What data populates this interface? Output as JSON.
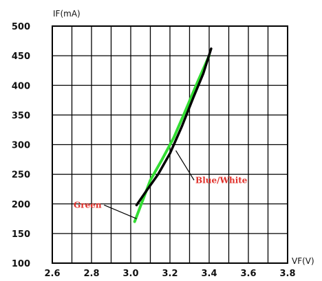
{
  "chart_data": {
    "type": "line",
    "title": "",
    "xlabel": "VF(V)",
    "ylabel": "IF(mA)",
    "xlim": [
      2.6,
      3.8
    ],
    "ylim": [
      100,
      500
    ],
    "x_ticks": [
      "2.6",
      "2.8",
      "3.0",
      "3.2",
      "3.4",
      "3.6",
      "3.8"
    ],
    "y_ticks": [
      "100",
      "150",
      "200",
      "250",
      "300",
      "350",
      "400",
      "450",
      "500"
    ],
    "grid": true,
    "series": [
      {
        "name": "Blue/White",
        "color": "#000000",
        "points": [
          [
            3.03,
            198
          ],
          [
            3.08,
            222
          ],
          [
            3.14,
            250
          ],
          [
            3.2,
            285
          ],
          [
            3.26,
            330
          ],
          [
            3.32,
            380
          ],
          [
            3.37,
            420
          ],
          [
            3.41,
            462
          ]
        ]
      },
      {
        "name": "Green",
        "color": "#33dd33",
        "points": [
          [
            3.02,
            170
          ],
          [
            3.06,
            205
          ],
          [
            3.1,
            240
          ],
          [
            3.16,
            275
          ],
          [
            3.22,
            312
          ],
          [
            3.28,
            358
          ],
          [
            3.34,
            405
          ],
          [
            3.4,
            450
          ]
        ]
      }
    ],
    "annotations": [
      {
        "text": "Blue/White",
        "series": "Blue/White",
        "at": [
          3.23,
          290
        ],
        "text_at": [
          3.33,
          240
        ]
      },
      {
        "text": "Green",
        "series": "Green",
        "at": [
          3.03,
          175
        ],
        "text_at": [
          2.78,
          198
        ]
      }
    ]
  }
}
